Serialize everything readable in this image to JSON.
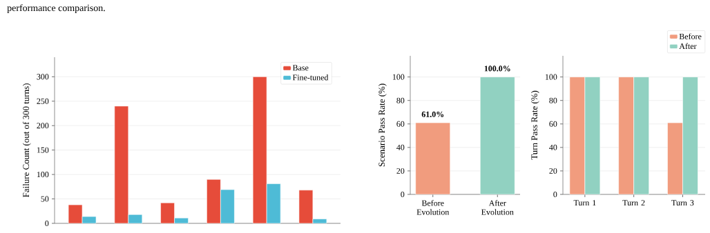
{
  "chart_data": [
    {
      "type": "bar",
      "annotations": [
        "performance comparison."
      ],
      "categories": [
        null,
        null,
        null,
        null,
        null,
        null
      ],
      "ylabel": "Failure Count (out of 300 turns)",
      "ylim": [
        0,
        340
      ],
      "yticks": [
        0,
        50,
        100,
        150,
        200,
        250,
        300
      ],
      "grid": "y",
      "legend": "top right",
      "series": [
        {
          "name": "Base",
          "color": "#e64c3a",
          "values": [
            38,
            240,
            42,
            90,
            300,
            68
          ]
        },
        {
          "name": "Fine-tuned",
          "color": "#4ebbd6",
          "values": [
            14,
            18,
            11,
            69,
            81,
            9
          ]
        }
      ]
    },
    {
      "type": "bar",
      "categories": [
        "Before Evolution",
        "After Evolution"
      ],
      "values": [
        61,
        100
      ],
      "colors": [
        "#f19c7e",
        "#91d1c1"
      ],
      "value_labels": [
        "61.0%",
        "100.0%"
      ],
      "ylabel": "Scenario Pass Rate (%)",
      "ylim": [
        0,
        118
      ],
      "yticks": [
        0,
        20,
        40,
        60,
        80,
        100
      ],
      "grid": "y"
    },
    {
      "type": "bar",
      "categories": [
        "Turn 1",
        "Turn 2",
        "Turn 3"
      ],
      "ylabel": "Turn Pass Rate (%)",
      "ylim": [
        0,
        118
      ],
      "yticks": [
        0,
        20,
        40,
        60,
        80,
        100
      ],
      "grid": "y",
      "legend": "top right",
      "series": [
        {
          "name": "Before",
          "color": "#f19c7e",
          "values": [
            100,
            100,
            61
          ]
        },
        {
          "name": "After",
          "color": "#91d1c1",
          "values": [
            100,
            100,
            100
          ]
        }
      ]
    }
  ]
}
